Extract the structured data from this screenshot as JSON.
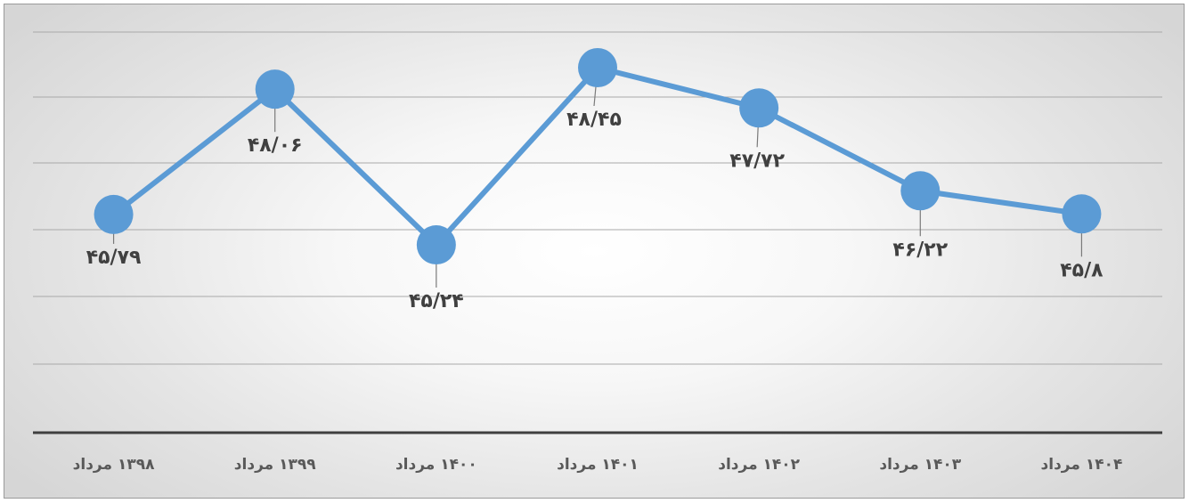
{
  "chart_data": {
    "type": "line",
    "categories": [
      "۱۳۹۸ مرداد",
      "۱۳۹۹ مرداد",
      "۱۴۰۰ مرداد",
      "۱۴۰۱ مرداد",
      "۱۴۰۲ مرداد",
      "۱۴۰۳ مرداد",
      "۱۴۰۴ مرداد"
    ],
    "series": [
      {
        "values": [
          45.79,
          48.06,
          45.24,
          48.45,
          47.72,
          46.22,
          45.8
        ],
        "data_labels": [
          "۴۵/۷۹",
          "۴۸/۰۶",
          "۴۵/۲۴",
          "۴۸/۴۵",
          "۴۷/۷۲",
          "۴۶/۲۲",
          "۴۵/۸"
        ]
      }
    ],
    "title": "",
    "xlabel": "",
    "ylabel": "",
    "y_axis_visible": false,
    "grid": true,
    "legend": "none",
    "colors": {
      "series": "#5b9bd5",
      "grid": "#a9a9a9",
      "axis": "#3f3f3f",
      "label": "#404040",
      "tick": "#595959"
    }
  }
}
